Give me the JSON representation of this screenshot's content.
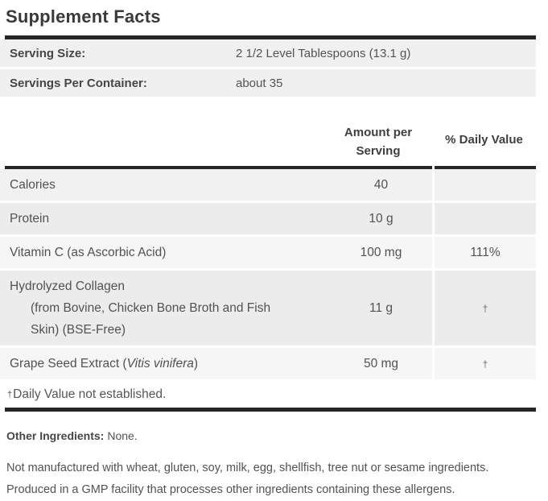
{
  "title": "Supplement Facts",
  "serving": {
    "rows": [
      {
        "label": "Serving Size:",
        "value": "2 1/2 Level Tablespoons (13.1 g)"
      },
      {
        "label": "Servings Per Container:",
        "value": "about 35"
      }
    ]
  },
  "table": {
    "amount_header": {
      "line1": "Amount per",
      "line2": "Serving"
    },
    "dv_header": "% Daily Value",
    "rows": [
      {
        "name": "Calories",
        "amount": "40",
        "dv": ""
      },
      {
        "name": "Protein",
        "amount": "10 g",
        "dv": ""
      },
      {
        "name": "Vitamin C (as Ascorbic Acid)",
        "amount": "100 mg",
        "dv": "111%"
      },
      {
        "name": "Hydrolyzed Collagen",
        "desc_line1": "(from Bovine, Chicken Bone Broth and Fish",
        "desc_line2": "Skin) (BSE-Free)",
        "amount": "11 g",
        "dv": "†"
      },
      {
        "name_prefix": "Grape Seed Extract (",
        "name_italic": "Vitis vinifera",
        "name_suffix": ")",
        "amount": "50 mg",
        "dv": "†"
      }
    ],
    "footnote": {
      "dagger": "†",
      "text": "Daily Value not established."
    }
  },
  "other_ingredients": {
    "label": "Other Ingredients:",
    "value": "None."
  },
  "allergen_note": "Not manufactured with wheat, gluten, soy, milk, egg, shellfish, tree nut or sesame ingredients. Produced in a GMP facility that processes other ingredients containing these allergens.",
  "colors": {
    "rule_bar": "#262626",
    "row_gray": "#ececed",
    "row_light": "#f6f6f7",
    "text": "#525252"
  }
}
